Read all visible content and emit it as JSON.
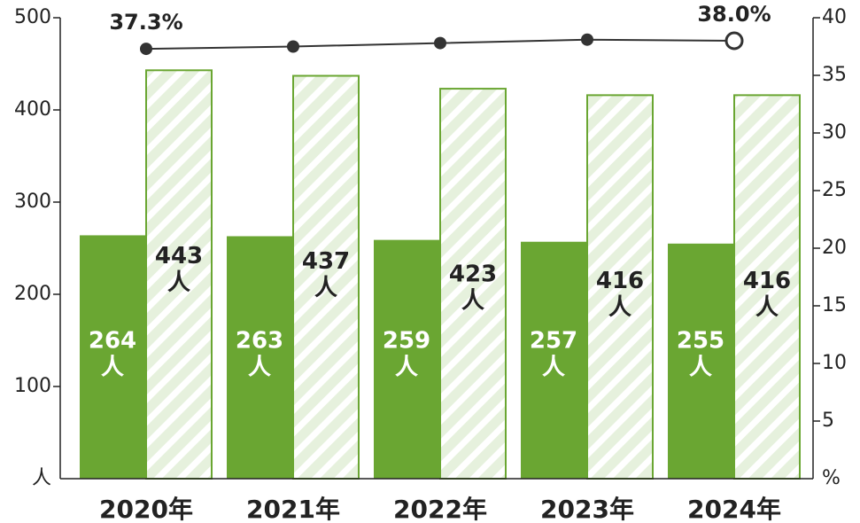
{
  "chart_data": {
    "type": "bar_line",
    "categories": [
      "2020年",
      "2021年",
      "2022年",
      "2023年",
      "2024年"
    ],
    "ylabel": "人",
    "y2label": "%",
    "ylim": [
      0,
      500
    ],
    "yticks": [
      100,
      200,
      300,
      400,
      500
    ],
    "y2lim": [
      0,
      40
    ],
    "y2ticks": [
      5,
      10,
      15,
      20,
      25,
      30,
      35,
      40
    ],
    "series": [
      {
        "type": "bar",
        "color": "#6aa632",
        "values": [
          264,
          263,
          259,
          257,
          255
        ]
      },
      {
        "type": "bar",
        "color": "#6aa632",
        "fill": "#e6f1dd",
        "hatch": true,
        "values": [
          443,
          437,
          423,
          416,
          416
        ]
      },
      {
        "type": "line",
        "color": "#333333",
        "axis": "y2",
        "values": [
          37.3,
          37.5,
          37.8,
          38.1,
          38.0
        ],
        "value_labels": [
          "37.3%",
          null,
          null,
          null,
          "38.0%"
        ]
      }
    ]
  }
}
